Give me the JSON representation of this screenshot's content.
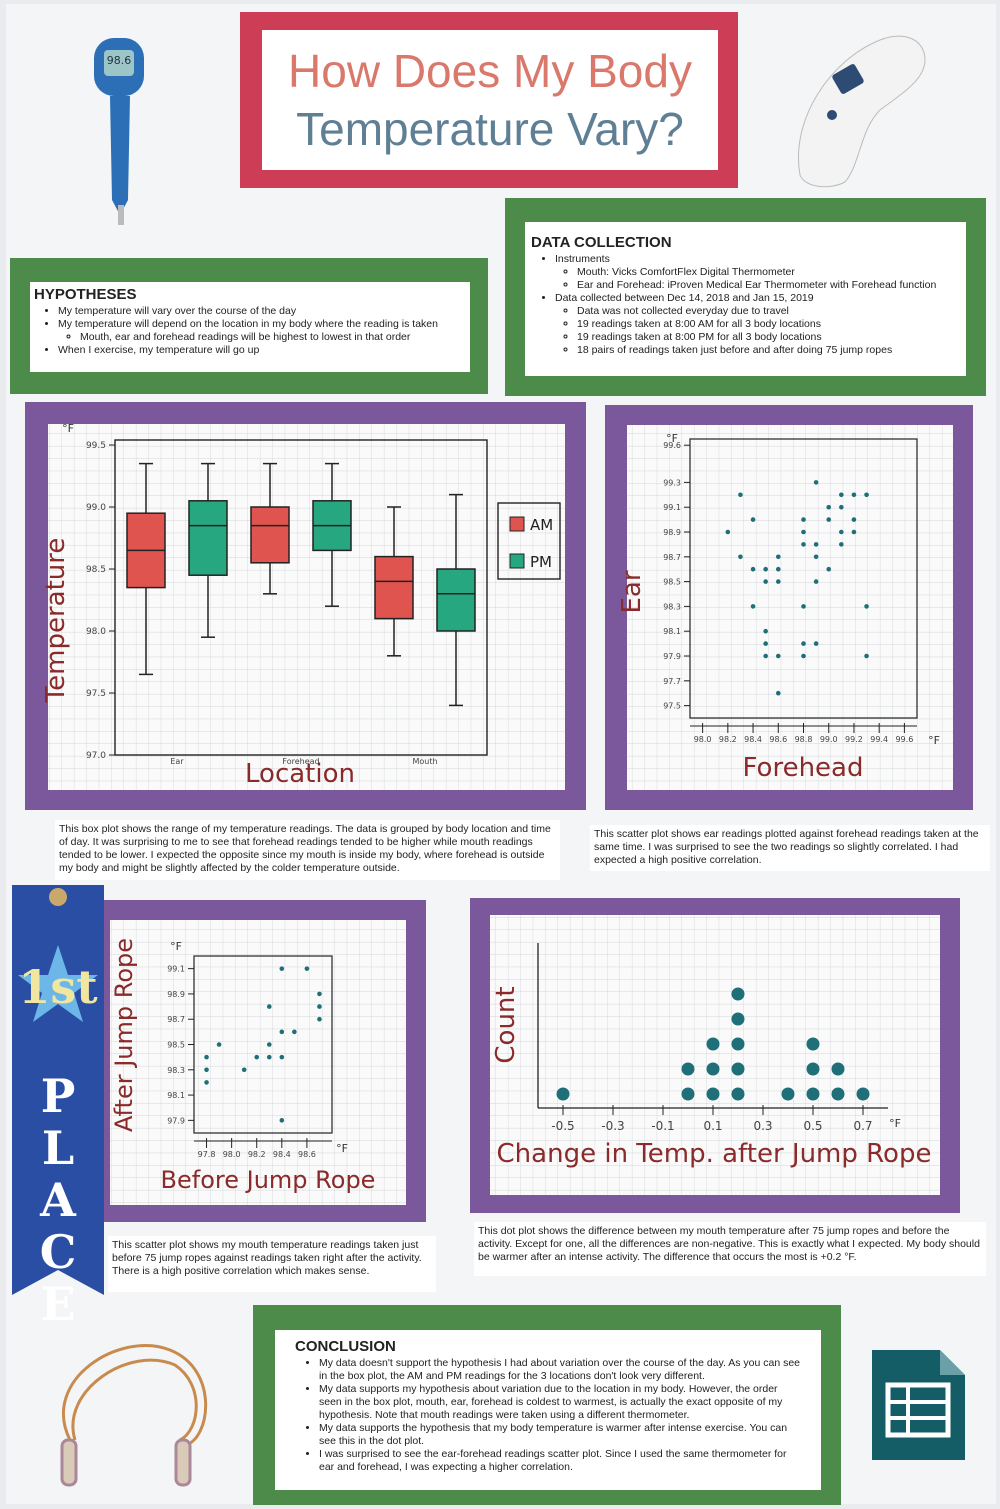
{
  "title": [
    "How Does My Body",
    "Temperature Vary?"
  ],
  "thermometer_display": "98.6",
  "hypotheses": {
    "heading": "HYPOTHESES",
    "items": [
      {
        "text": "My temperature will vary over the course of the day"
      },
      {
        "text": "My temperature will depend on the location in my body where the reading is taken",
        "sub": [
          "Mouth, ear and forehead readings will be highest to lowest in that order"
        ]
      },
      {
        "text": "When I exercise, my temperature will go up"
      }
    ]
  },
  "data_collection": {
    "heading": "DATA COLLECTION",
    "items": [
      {
        "text": "Instruments",
        "sub": [
          "Mouth: Vicks ComfortFlex Digital Thermometer",
          "Ear and Forehead: iProven Medical Ear Thermometer with Forehead function"
        ]
      },
      {
        "text": "Data collected between Dec 14, 2018 and Jan 15, 2019",
        "sub": [
          "Data was not collected everyday due to travel",
          "19 readings taken at 8:00 AM for all 3 body locations",
          "19 readings taken at 8:00 PM for all 3 body locations",
          "18 pairs of readings taken just before and after doing 75 jump ropes"
        ]
      }
    ]
  },
  "chart_data": [
    {
      "type": "box",
      "x_label": "Location",
      "y_label": "Temperature",
      "y_unit": "°F",
      "categories": [
        "Ear",
        "Forehead",
        "Mouth"
      ],
      "series": [
        {
          "name": "AM",
          "color": "#e0544f",
          "min": [
            97.65,
            98.3,
            97.8
          ],
          "q1": [
            98.35,
            98.55,
            98.1
          ],
          "median": [
            98.65,
            98.85,
            98.4
          ],
          "q3": [
            98.95,
            99.0,
            98.6
          ],
          "max": [
            99.35,
            99.35,
            99.0
          ]
        },
        {
          "name": "PM",
          "color": "#27a77f",
          "min": [
            97.95,
            98.2,
            97.4
          ],
          "q1": [
            98.45,
            98.65,
            98.0
          ],
          "median": [
            98.85,
            98.85,
            98.3
          ],
          "q3": [
            99.05,
            99.05,
            98.5
          ],
          "max": [
            99.35,
            99.35,
            99.1
          ]
        }
      ],
      "ylim": [
        97.0,
        99.5
      ],
      "yticks": [
        {
          "value": 97,
          "label": "97.0"
        },
        97.5,
        {
          "value": 98,
          "label": "98.0"
        },
        98.5,
        {
          "value": 99,
          "label": "99.0"
        },
        99.5
      ]
    },
    {
      "type": "scatter",
      "x_label": "Forehead",
      "y_label": "Ear",
      "x_unit": "°F",
      "y_unit": "°F",
      "color": "#1f6f78",
      "x": [
        98.3,
        98.4,
        98.2,
        98.3,
        98.4,
        98.5,
        98.6,
        98.6,
        98.5,
        98.6,
        98.4,
        98.5,
        98.5,
        98.5,
        98.6,
        98.6,
        98.8,
        98.8,
        98.8,
        98.9,
        98.9,
        98.8,
        98.8,
        98.8,
        98.9,
        98.9,
        99.0,
        98.9,
        99.0,
        99.1,
        99.1,
        99.1,
        99.2,
        99.2,
        99.2,
        99.3,
        99.1,
        99.3,
        99.3,
        99.0
      ],
      "values": [
        99.2,
        99.0,
        98.9,
        98.7,
        98.6,
        98.6,
        98.7,
        98.6,
        98.5,
        98.5,
        98.3,
        98.1,
        98.0,
        97.9,
        97.9,
        97.6,
        99.0,
        98.9,
        98.8,
        98.8,
        98.7,
        98.3,
        98.0,
        97.9,
        98.0,
        99.3,
        98.6,
        98.5,
        99.0,
        99.2,
        98.9,
        98.8,
        99.2,
        99.0,
        98.9,
        99.2,
        99.1,
        98.3,
        97.9,
        99.1
      ],
      "xlim": [
        97.9,
        99.7
      ],
      "ylim": [
        97.4,
        99.65
      ],
      "xticks": [
        {
          "value": 98,
          "label": "98.0"
        },
        98.2,
        98.4,
        98.6,
        98.8,
        {
          "value": 99,
          "label": "99.0"
        },
        99.2,
        99.4,
        99.6
      ],
      "yticks": [
        97.5,
        97.7,
        97.9,
        98.1,
        98.3,
        98.5,
        98.7,
        98.9,
        99.1,
        99.3,
        99.6
      ]
    },
    {
      "type": "scatter",
      "x_label": "Before Jump Rope",
      "y_label": "After Jump Rope",
      "x_unit": "°F",
      "y_unit": "°F",
      "color": "#1f6f78",
      "x": [
        97.8,
        97.8,
        97.8,
        97.9,
        98.1,
        98.2,
        98.3,
        98.3,
        98.4,
        98.3,
        98.4,
        98.5,
        98.4,
        98.6,
        98.7,
        98.7,
        98.7,
        98.4
      ],
      "values": [
        98.4,
        98.3,
        98.2,
        98.5,
        98.3,
        98.4,
        98.5,
        98.4,
        98.4,
        98.8,
        98.6,
        98.6,
        99.1,
        99.1,
        98.9,
        98.8,
        98.7,
        97.9
      ],
      "xlim": [
        97.7,
        98.8
      ],
      "ylim": [
        97.8,
        99.2
      ],
      "xticks": [
        97.8,
        {
          "value": 98,
          "label": "98.0"
        },
        98.2,
        98.4,
        98.6
      ],
      "yticks": [
        97.9,
        98.1,
        98.3,
        98.5,
        98.7,
        98.9,
        99.1
      ]
    },
    {
      "type": "dot",
      "x_label": "Change in Temp. after Jump Rope",
      "y_label": "Count",
      "x_unit": "°F",
      "color": "#1f6f78",
      "x": [
        -0.5,
        0,
        0.1,
        0.2,
        0.4,
        0.5,
        0.6,
        0.7
      ],
      "values": [
        1,
        2,
        3,
        5,
        1,
        3,
        2,
        1
      ],
      "xlim": [
        -0.6,
        0.8
      ],
      "xticks": [
        -0.5,
        -0.3,
        -0.1,
        0.1,
        0.3,
        0.5,
        0.7
      ]
    }
  ],
  "captions": [
    "This box plot shows the range of my temperature readings. The data is grouped by body location and time of day. It was surprising to me to see that forehead readings tended to be higher while mouth readings tended to be lower. I expected the opposite since my mouth is inside my body, where forehead is outside my body and might be slightly affected by the colder temperature outside.",
    "This scatter plot shows ear readings plotted against forehead readings taken at the same time. I was surprised to see the two readings so slightly correlated. I had expected a high positive correlation.",
    "This scatter plot shows my mouth temperature readings taken just before 75 jump ropes against readings taken right after the activity. There is a high positive correlation which makes sense.",
    "This dot plot shows the difference between my mouth temperature after 75 jump ropes and before the activity. Except for one, all the differences are non-negative. This is exactly what I expected. My body should be warmer after an intense activity. The difference that occurs the most is +0.2 °F."
  ],
  "ribbon": {
    "rank": "1st",
    "place": "PLACE"
  },
  "conclusion": {
    "heading": "CONCLUSION",
    "items": [
      "My data doesn't support the hypothesis I had about variation over the course of the day. As you can see in the box plot, the AM and PM readings for the 3 locations don't look very different.",
      "My data supports my hypothesis about variation due to the location in my body. However, the order seen in the box plot, mouth, ear, forehead is coldest to warmest, is actually the exact opposite of my hypothesis. Note that mouth readings were taken using a different thermometer.",
      "My data supports the hypothesis that my body temperature is warmer after intense exercise. You can see this in the dot plot.",
      "I was surprised to see the ear-forehead readings scatter plot. Since I used the same thermometer for ear and forehead, I was expecting a higher correlation."
    ]
  }
}
